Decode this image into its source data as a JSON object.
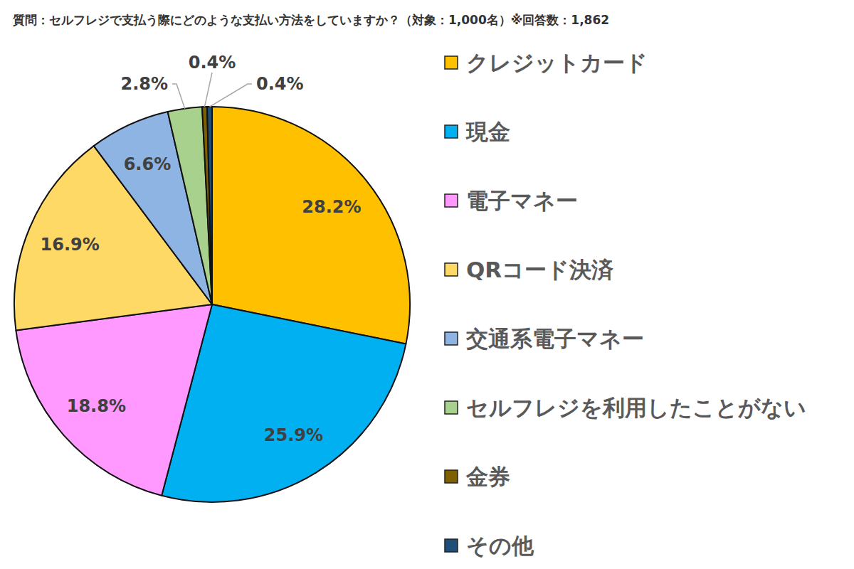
{
  "chart_data": {
    "type": "pie",
    "title": "質問：セルフレジで支払う際にどのような支払い方法をしていますか？（対象：1,000名）※回答数：1,862",
    "categories": [
      "クレジットカード",
      "現金",
      "電子マネー",
      "QRコード決済",
      "交通系電子マネー",
      "セルフレジを利用したことがない",
      "金券",
      "その他"
    ],
    "values": [
      28.2,
      25.9,
      18.8,
      16.9,
      6.6,
      2.8,
      0.4,
      0.4
    ],
    "value_labels": [
      "28.2%",
      "25.9%",
      "18.8%",
      "16.9%",
      "6.6%",
      "2.8%",
      "0.4%",
      "0.4%"
    ],
    "colors": [
      "#ffc000",
      "#00b0f0",
      "#ff99ff",
      "#ffd966",
      "#8eb4e3",
      "#a9d18e",
      "#7f6000",
      "#1f4e79"
    ],
    "data_labels": true,
    "legend": "right"
  }
}
